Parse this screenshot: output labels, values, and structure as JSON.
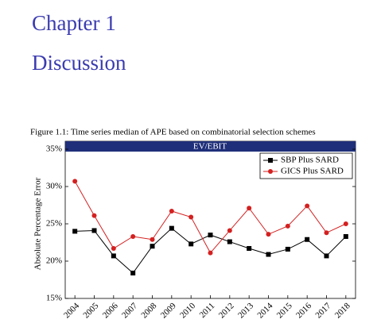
{
  "document": {
    "chapter": "Chapter 1",
    "heading": "Discussion",
    "caption": "Figure 1.1: Time series median of APE based on combinatorial selection schemes"
  },
  "chart_data": {
    "type": "line",
    "title": "EV/EBIT",
    "y_label": "Absolute Percentage Error",
    "x": [
      2004,
      2005,
      2006,
      2007,
      2008,
      2009,
      2010,
      2011,
      2012,
      2013,
      2014,
      2015,
      2016,
      2017,
      2018
    ],
    "xlim": [
      2003.5,
      2018.5
    ],
    "xticks": [
      2004,
      2005,
      2006,
      2007,
      2008,
      2009,
      2010,
      2011,
      2012,
      2013,
      2014,
      2015,
      2016,
      2017,
      2018
    ],
    "ylim": [
      15,
      35
    ],
    "yticks": [
      {
        "value": 15,
        "label": "15%"
      },
      {
        "value": 20,
        "label": "20%"
      },
      {
        "value": 25,
        "label": "25%"
      },
      {
        "value": 30,
        "label": "30%"
      },
      {
        "value": 35,
        "label": "35%"
      }
    ],
    "grid": false,
    "legend": "top-right",
    "series": [
      {
        "name": "SBP Plus SARD",
        "color": "#000000",
        "marker": "square",
        "values": [
          24.0,
          24.1,
          20.7,
          18.4,
          22.0,
          24.4,
          22.3,
          23.5,
          22.6,
          21.7,
          20.9,
          21.6,
          22.9,
          20.7,
          23.3
        ]
      },
      {
        "name": "GICS Plus SARD",
        "color": "#d42020",
        "marker": "circle",
        "values": [
          30.7,
          26.1,
          21.7,
          23.3,
          22.9,
          26.7,
          25.9,
          21.1,
          24.1,
          27.1,
          23.6,
          24.7,
          27.4,
          23.8,
          25.0
        ]
      }
    ]
  }
}
